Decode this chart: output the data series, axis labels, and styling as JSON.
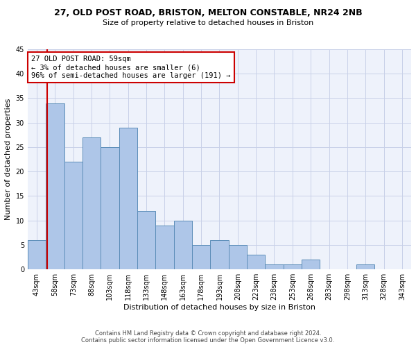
{
  "title_line1": "27, OLD POST ROAD, BRISTON, MELTON CONSTABLE, NR24 2NB",
  "title_line2": "Size of property relative to detached houses in Briston",
  "xlabel": "Distribution of detached houses by size in Briston",
  "ylabel": "Number of detached properties",
  "bin_labels": [
    "43sqm",
    "58sqm",
    "73sqm",
    "88sqm",
    "103sqm",
    "118sqm",
    "133sqm",
    "148sqm",
    "163sqm",
    "178sqm",
    "193sqm",
    "208sqm",
    "223sqm",
    "238sqm",
    "253sqm",
    "268sqm",
    "283sqm",
    "298sqm",
    "313sqm",
    "328sqm",
    "343sqm"
  ],
  "bar_values": [
    6,
    34,
    22,
    27,
    25,
    29,
    12,
    9,
    10,
    5,
    6,
    5,
    3,
    1,
    1,
    2,
    0,
    0,
    1,
    0,
    0
  ],
  "bar_color": "#aec6e8",
  "bar_edge_color": "#5b8db8",
  "property_line_color": "#cc0000",
  "annotation_text": "27 OLD POST ROAD: 59sqm\n← 3% of detached houses are smaller (6)\n96% of semi-detached houses are larger (191) →",
  "annotation_box_color": "#ffffff",
  "annotation_box_edge": "#cc0000",
  "ylim": [
    0,
    45
  ],
  "yticks": [
    0,
    5,
    10,
    15,
    20,
    25,
    30,
    35,
    40,
    45
  ],
  "footer_line1": "Contains HM Land Registry data © Crown copyright and database right 2024.",
  "footer_line2": "Contains public sector information licensed under the Open Government Licence v3.0.",
  "background_color": "#eef2fb",
  "grid_color": "#c8d0e8"
}
